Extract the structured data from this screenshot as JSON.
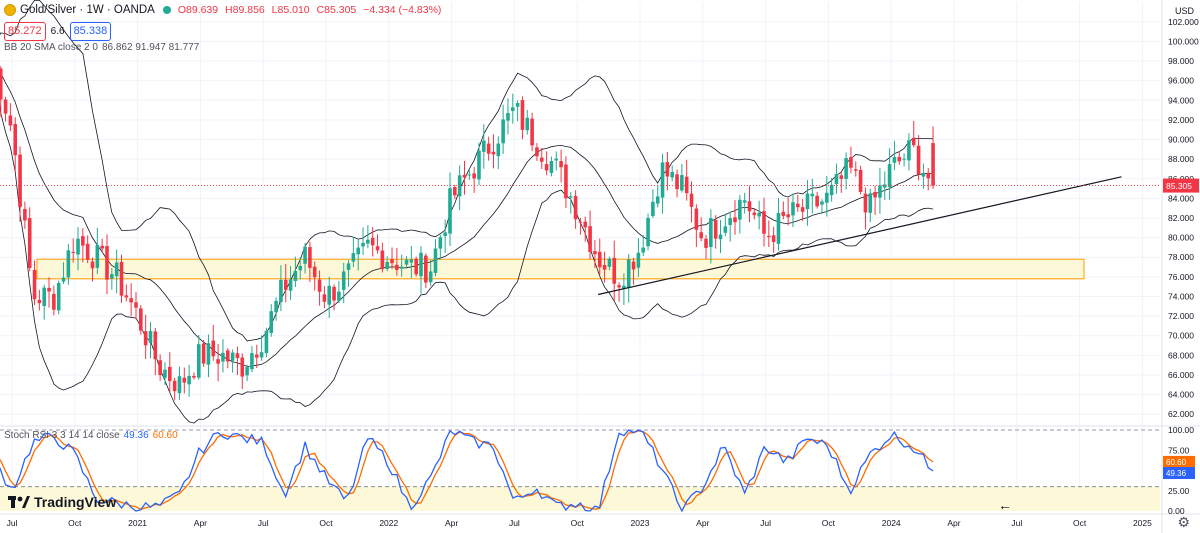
{
  "header": {
    "symbol": "Gold/Silver · 1W · OANDA",
    "ohlc": {
      "o": "O89.639",
      "h": "H89.856",
      "l": "L85.010",
      "c": "C85.305",
      "change": "−4.334 (−4.83%)"
    },
    "bid": "85.272",
    "spread": "6.6",
    "ask": "85.338"
  },
  "indicators": {
    "bb_label": "BB 20 SMA close 2 0",
    "bb_values": "86.862  91.947  81.777",
    "rsi_label": "Stoch RSI 3 3 14 14 close",
    "rsi_k": "49.36",
    "rsi_d": "60.60"
  },
  "branding": {
    "logo_text": "TradingView"
  },
  "price_axis": {
    "currency": "USD"
  },
  "colors": {
    "up": "#22ab94",
    "down": "#f23645",
    "bb": "#131722",
    "k": "#2962ff",
    "d": "#ff6d00",
    "zone_fill": "#fdf8d8",
    "zone_stroke": "#ff9800"
  },
  "chart_data": [
    {
      "type": "candlestick",
      "title": "Gold/Silver · 1W · OANDA",
      "ylim": [
        61,
        103
      ],
      "y_ticks": [
        "62.000",
        "64.000",
        "66.000",
        "68.000",
        "70.000",
        "72.000",
        "74.000",
        "76.000",
        "78.000",
        "80.000",
        "82.000",
        "84.000",
        "86.000",
        "88.000",
        "90.000",
        "92.000",
        "94.000",
        "96.000",
        "98.000",
        "100.000",
        "102.000"
      ],
      "current_price": "85.305",
      "x_labels": [
        "Jul",
        "Oct",
        "2021",
        "Apr",
        "Jul",
        "Oct",
        "2022",
        "Apr",
        "Jul",
        "Oct",
        "2023",
        "Apr",
        "Jul",
        "Oct",
        "2024",
        "Apr",
        "Jul",
        "Oct",
        "2025"
      ],
      "x_label_dates": [
        "2020-07",
        "2020-10",
        "2021-01",
        "2021-04",
        "2021-07",
        "2021-10",
        "2022-01",
        "2022-04",
        "2022-07",
        "2022-10",
        "2023-01",
        "2023-04",
        "2023-07",
        "2023-10",
        "2024-01",
        "2024-04",
        "2024-07",
        "2024-10",
        "2025-01"
      ],
      "close_path": [
        [
          "2020-06",
          99
        ],
        [
          "2020-07",
          91
        ],
        [
          "2020-08",
          74
        ],
        [
          "2020-09",
          74
        ],
        [
          "2020-10",
          80
        ],
        [
          "2020-11",
          78
        ],
        [
          "2020-12",
          76
        ],
        [
          "2021-01",
          72
        ],
        [
          "2021-02",
          67
        ],
        [
          "2021-03",
          65
        ],
        [
          "2021-04",
          68
        ],
        [
          "2021-05",
          68
        ],
        [
          "2021-06",
          67
        ],
        [
          "2021-07",
          70
        ],
        [
          "2021-08",
          75
        ],
        [
          "2021-09",
          78
        ],
        [
          "2021-10",
          74
        ],
        [
          "2021-11",
          76
        ],
        [
          "2021-12",
          79
        ],
        [
          "2022-01",
          78
        ],
        [
          "2022-02",
          77
        ],
        [
          "2022-03",
          77
        ],
        [
          "2022-04",
          84
        ],
        [
          "2022-05",
          87
        ],
        [
          "2022-06",
          90
        ],
        [
          "2022-07",
          93
        ],
        [
          "2022-08",
          90
        ],
        [
          "2022-09",
          87
        ],
        [
          "2022-10",
          83
        ],
        [
          "2022-11",
          78
        ],
        [
          "2022-12",
          76
        ],
        [
          "2023-01",
          79
        ],
        [
          "2023-02",
          87
        ],
        [
          "2023-03",
          85
        ],
        [
          "2023-04",
          80
        ],
        [
          "2023-05",
          82
        ],
        [
          "2023-06",
          84
        ],
        [
          "2023-07",
          80
        ],
        [
          "2023-08",
          82
        ],
        [
          "2023-09",
          83
        ],
        [
          "2023-10",
          84
        ],
        [
          "2023-11",
          87
        ],
        [
          "2023-12",
          83
        ],
        [
          "2024-01",
          87
        ],
        [
          "2024-02",
          89
        ],
        [
          "2024-03",
          85.3
        ]
      ],
      "bollinger": {
        "period": 20,
        "basis": "86.862",
        "upper": "91.947",
        "lower": "81.777"
      },
      "support_zone": {
        "from": 75.8,
        "to": 77.8,
        "x_from": "2020-08",
        "x_to": "2024-12"
      },
      "trendline": {
        "from": [
          "2022-11",
          74.2
        ],
        "to": [
          "2024-12",
          86.2
        ]
      }
    },
    {
      "type": "line",
      "title": "Stoch RSI 3 3 14 14 close",
      "ylim": [
        0,
        100
      ],
      "y_ticks": [
        "0.00",
        "25.00",
        "50.00",
        "75.00",
        "100.00"
      ],
      "bands": [
        20,
        80
      ],
      "series": [
        {
          "name": "K",
          "last": "49.36"
        },
        {
          "name": "D",
          "last": "60.60"
        }
      ],
      "k_path": [
        [
          "2020-06",
          70
        ],
        [
          "2020-07",
          25
        ],
        [
          "2020-08",
          85
        ],
        [
          "2020-09",
          92
        ],
        [
          "2020-10",
          70
        ],
        [
          "2020-11",
          15
        ],
        [
          "2020-12",
          10
        ],
        [
          "2021-01",
          5
        ],
        [
          "2021-02",
          5
        ],
        [
          "2021-03",
          20
        ],
        [
          "2021-04",
          75
        ],
        [
          "2021-05",
          98
        ],
        [
          "2021-06",
          90
        ],
        [
          "2021-07",
          85
        ],
        [
          "2021-08",
          20
        ],
        [
          "2021-09",
          80
        ],
        [
          "2021-10",
          40
        ],
        [
          "2021-11",
          10
        ],
        [
          "2021-12",
          90
        ],
        [
          "2022-01",
          60
        ],
        [
          "2022-02",
          5
        ],
        [
          "2022-03",
          40
        ],
        [
          "2022-04",
          100
        ],
        [
          "2022-05",
          85
        ],
        [
          "2022-06",
          80
        ],
        [
          "2022-07",
          10
        ],
        [
          "2022-08",
          30
        ],
        [
          "2022-09",
          5
        ],
        [
          "2022-10",
          10
        ],
        [
          "2022-11",
          0
        ],
        [
          "2022-12",
          100
        ],
        [
          "2023-01",
          100
        ],
        [
          "2023-02",
          55
        ],
        [
          "2023-03",
          0
        ],
        [
          "2023-04",
          30
        ],
        [
          "2023-05",
          80
        ],
        [
          "2023-06",
          20
        ],
        [
          "2023-07",
          80
        ],
        [
          "2023-08",
          60
        ],
        [
          "2023-09",
          90
        ],
        [
          "2023-10",
          80
        ],
        [
          "2023-11",
          25
        ],
        [
          "2023-12",
          70
        ],
        [
          "2024-01",
          95
        ],
        [
          "2024-02",
          80
        ],
        [
          "2024-03",
          49.36
        ]
      ]
    }
  ]
}
